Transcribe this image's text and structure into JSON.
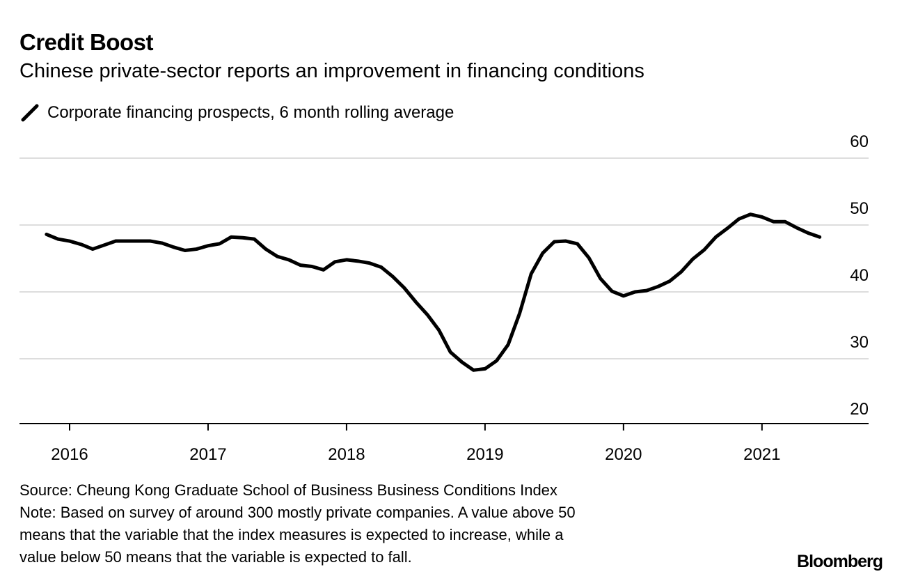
{
  "header": {
    "title": "Credit Boost",
    "subtitle": "Chinese private-sector reports an improvement in financing conditions"
  },
  "chart_data": {
    "type": "line",
    "title": "Credit Boost",
    "subtitle": "Chinese private-sector reports an improvement in financing conditions",
    "xlabel": "",
    "ylabel": "",
    "ylim": [
      20,
      60
    ],
    "yticks": [
      "60",
      "50",
      "40",
      "30",
      "20"
    ],
    "xticks": [
      "2016",
      "2017",
      "2018",
      "2019",
      "2020",
      "2021"
    ],
    "grid": true,
    "legend_position": "top-left",
    "line_color": "#000000",
    "grid_color": "#dddddd",
    "series": [
      {
        "name": "Corporate financing prospects, 6 month rolling average",
        "start": "2015-11",
        "frequency": "monthly",
        "values": [
          48.6,
          47.9,
          47.6,
          47.1,
          46.4,
          47.0,
          47.6,
          47.6,
          47.6,
          47.6,
          47.3,
          46.7,
          46.2,
          46.4,
          46.9,
          47.2,
          48.2,
          48.1,
          47.9,
          46.4,
          45.3,
          44.8,
          44.0,
          43.8,
          43.3,
          44.5,
          44.8,
          44.6,
          44.3,
          43.7,
          42.3,
          40.6,
          38.5,
          36.6,
          34.3,
          31.0,
          29.5,
          28.3,
          28.5,
          29.7,
          32.1,
          36.8,
          42.7,
          45.8,
          47.5,
          47.6,
          47.2,
          45.1,
          42.0,
          40.1,
          39.4,
          40.0,
          40.2,
          40.8,
          41.6,
          43.0,
          44.9,
          46.3,
          48.2,
          49.5,
          50.9,
          51.6,
          51.2,
          50.5,
          50.5,
          49.6,
          48.8,
          48.2
        ]
      }
    ]
  },
  "footer": {
    "source": "Source: Cheung Kong Graduate School of Business Business Conditions Index",
    "note_lines": [
      "Note: Based on survey of around 300 mostly private companies. A value above 50",
      "means that the variable that the index measures is expected to increase, while a",
      "value below 50 means that the variable is expected to fall."
    ],
    "logo": "Bloomberg"
  }
}
